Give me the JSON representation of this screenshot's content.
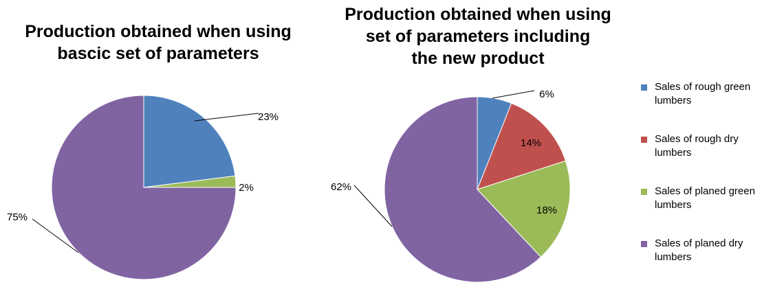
{
  "colors": {
    "rough_green": "#4F81BD",
    "rough_dry": "#C0504D",
    "planed_green": "#9BBB59",
    "planed_dry": "#8064A2"
  },
  "legend": [
    {
      "label": "Sales of rough green lumbers",
      "color": "#4F81BD"
    },
    {
      "label": "Sales of rough dry lumbers",
      "color": "#C0504D"
    },
    {
      "label": "Sales of planed green lumbers",
      "color": "#9BBB59"
    },
    {
      "label": "Sales of planed dry lumbers",
      "color": "#8064A2"
    }
  ],
  "chart_data": [
    {
      "type": "pie",
      "title": "Production obtained when using\nbascic set of parameters",
      "categories": [
        "Sales of rough green lumbers",
        "Sales of rough dry lumbers",
        "Sales of planed green lumbers",
        "Sales of planed dry lumbers"
      ],
      "values": [
        23,
        0,
        2,
        75
      ],
      "labels": [
        "23%",
        "",
        "2%",
        "75%"
      ]
    },
    {
      "type": "pie",
      "title": "Production obtained when using\nset of parameters including\nthe new product",
      "categories": [
        "Sales of rough green lumbers",
        "Sales of rough dry lumbers",
        "Sales of planed green lumbers",
        "Sales of planed dry lumbers"
      ],
      "values": [
        6,
        14,
        18,
        62
      ],
      "labels": [
        "6%",
        "14%",
        "18%",
        "62%"
      ]
    }
  ]
}
